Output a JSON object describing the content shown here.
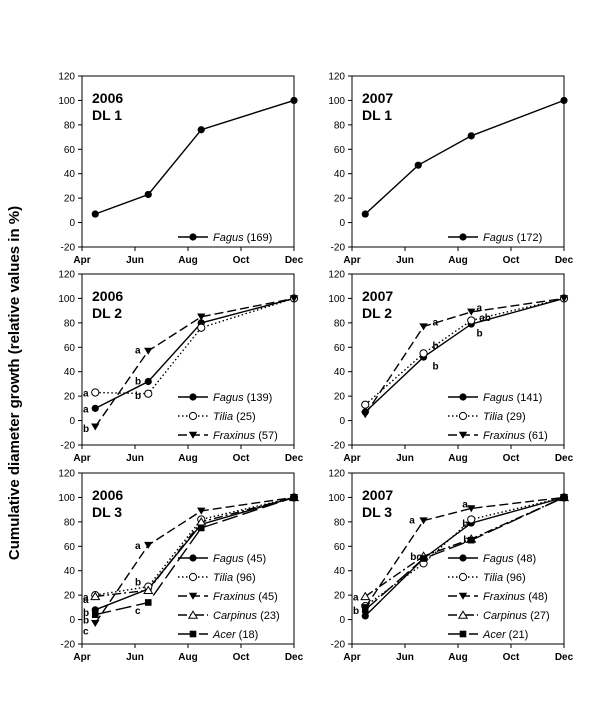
{
  "figure": {
    "ylabel": "Cumulative diameter growth (relative values in %)",
    "xticks": [
      "Apr",
      "Jun",
      "Aug",
      "Oct",
      "Dec"
    ],
    "yticks": [
      "-20",
      "0",
      "20",
      "40",
      "60",
      "80",
      "100",
      "120"
    ]
  },
  "chart_data": [
    {
      "type": "line",
      "year": "2006",
      "dl": "DL 1",
      "x": [
        "Apr",
        "Jun",
        "Aug",
        "Oct",
        "Dec"
      ],
      "ylim": [
        -20,
        120
      ],
      "series": [
        {
          "name": "Fagus",
          "n": "(169)",
          "style": "solid",
          "marker": "circle-filled",
          "points": [
            [
              0.25,
              7
            ],
            [
              1.25,
              23
            ],
            [
              2.25,
              76
            ],
            [
              4,
              100
            ]
          ]
        }
      ],
      "letters": []
    },
    {
      "type": "line",
      "year": "2007",
      "dl": "DL 1",
      "x": [
        "Apr",
        "Jun",
        "Aug",
        "Oct",
        "Dec"
      ],
      "ylim": [
        -20,
        120
      ],
      "series": [
        {
          "name": "Fagus",
          "n": "(172)",
          "style": "solid",
          "marker": "circle-filled",
          "points": [
            [
              0.25,
              7
            ],
            [
              1.25,
              47
            ],
            [
              2.25,
              71
            ],
            [
              4,
              100
            ]
          ]
        }
      ],
      "letters": []
    },
    {
      "type": "line",
      "year": "2006",
      "dl": "DL 2",
      "x": [
        "Apr",
        "Jun",
        "Aug",
        "Oct",
        "Dec"
      ],
      "ylim": [
        -20,
        120
      ],
      "series": [
        {
          "name": "Fagus",
          "n": "(139)",
          "style": "solid",
          "marker": "circle-filled",
          "points": [
            [
              0.25,
              10
            ],
            [
              1.25,
              32
            ],
            [
              2.25,
              80
            ],
            [
              4,
              100
            ]
          ]
        },
        {
          "name": "Tilia",
          "n": "(25)",
          "style": "dotted",
          "marker": "circle-open",
          "points": [
            [
              0.25,
              23
            ],
            [
              1.25,
              22
            ],
            [
              2.25,
              76
            ],
            [
              4,
              100
            ]
          ]
        },
        {
          "name": "Fraxinus",
          "n": "(57)",
          "style": "dashed",
          "marker": "triangle-down",
          "points": [
            [
              0.25,
              -5
            ],
            [
              1.25,
              57
            ],
            [
              2.25,
              85
            ],
            [
              4,
              100
            ]
          ]
        }
      ],
      "letters": [
        {
          "text": "a",
          "x": 0.02,
          "y": 23
        },
        {
          "text": "a",
          "x": 0.02,
          "y": 10
        },
        {
          "text": "b",
          "x": 0.02,
          "y": -6
        },
        {
          "text": "a",
          "x": 1.0,
          "y": 58
        },
        {
          "text": "b",
          "x": 1.0,
          "y": 33
        },
        {
          "text": "b",
          "x": 1.0,
          "y": 21
        }
      ]
    },
    {
      "type": "line",
      "year": "2007",
      "dl": "DL 2",
      "x": [
        "Apr",
        "Jun",
        "Aug",
        "Oct",
        "Dec"
      ],
      "ylim": [
        -20,
        120
      ],
      "series": [
        {
          "name": "Fagus",
          "n": "(141)",
          "style": "solid",
          "marker": "circle-filled",
          "points": [
            [
              0.25,
              7
            ],
            [
              1.35,
              52
            ],
            [
              2.25,
              79
            ],
            [
              4,
              100
            ]
          ]
        },
        {
          "name": "Tilia",
          "n": "(29)",
          "style": "dotted",
          "marker": "circle-open",
          "points": [
            [
              0.25,
              13
            ],
            [
              1.35,
              55
            ],
            [
              2.25,
              82
            ],
            [
              4,
              100
            ]
          ]
        },
        {
          "name": "Fraxinus",
          "n": "(61)",
          "style": "dashed",
          "marker": "triangle-down",
          "points": [
            [
              0.25,
              5
            ],
            [
              1.35,
              77
            ],
            [
              2.25,
              89
            ],
            [
              4,
              100
            ]
          ]
        }
      ],
      "letters": [
        {
          "text": "a",
          "x": 1.52,
          "y": 81
        },
        {
          "text": "b",
          "x": 1.52,
          "y": 62
        },
        {
          "text": "b",
          "x": 1.52,
          "y": 45
        },
        {
          "text": "a",
          "x": 2.35,
          "y": 93
        },
        {
          "text": "ab",
          "x": 2.4,
          "y": 85
        },
        {
          "text": "b",
          "x": 2.35,
          "y": 72
        }
      ]
    },
    {
      "type": "line",
      "year": "2006",
      "dl": "DL 3",
      "x": [
        "Apr",
        "Jun",
        "Aug",
        "Oct",
        "Dec"
      ],
      "ylim": [
        -20,
        120
      ],
      "series": [
        {
          "name": "Fagus",
          "n": "(45)",
          "style": "solid",
          "marker": "circle-filled",
          "points": [
            [
              0.25,
              8
            ],
            [
              1.25,
              25
            ],
            [
              2.25,
              78
            ],
            [
              4,
              100
            ]
          ]
        },
        {
          "name": "Tilia",
          "n": "(96)",
          "style": "dotted",
          "marker": "circle-open",
          "points": [
            [
              0.25,
              20
            ],
            [
              1.25,
              27
            ],
            [
              2.25,
              82
            ],
            [
              4,
              100
            ]
          ]
        },
        {
          "name": "Fraxinus",
          "n": "(45)",
          "style": "dashed",
          "marker": "triangle-down",
          "points": [
            [
              0.25,
              -3
            ],
            [
              1.25,
              61
            ],
            [
              2.25,
              89
            ],
            [
              4,
              100
            ]
          ]
        },
        {
          "name": "Carpinus",
          "n": "(23)",
          "style": "dashdot",
          "marker": "triangle-up-open",
          "points": [
            [
              0.25,
              19
            ],
            [
              1.25,
              24
            ],
            [
              2.25,
              80
            ],
            [
              4,
              100
            ]
          ]
        },
        {
          "name": "Acer",
          "n": "(18)",
          "style": "longdash",
          "marker": "square-filled",
          "points": [
            [
              0.25,
              4
            ],
            [
              1.25,
              14
            ],
            [
              2.25,
              75
            ],
            [
              4,
              100
            ]
          ]
        }
      ],
      "letters": [
        {
          "text": "a",
          "x": 0.02,
          "y": 19
        },
        {
          "text": "a",
          "x": 0.02,
          "y": 17
        },
        {
          "text": "b",
          "x": 0.02,
          "y": 6
        },
        {
          "text": "b",
          "x": 0.02,
          "y": 0
        },
        {
          "text": "c",
          "x": 0.02,
          "y": -9
        },
        {
          "text": "a",
          "x": 1.0,
          "y": 61
        },
        {
          "text": "b",
          "x": 1.0,
          "y": 31
        },
        {
          "text": "c",
          "x": 1.0,
          "y": 8
        }
      ]
    },
    {
      "type": "line",
      "year": "2007",
      "dl": "DL 3",
      "x": [
        "Apr",
        "Jun",
        "Aug",
        "Oct",
        "Dec"
      ],
      "ylim": [
        -20,
        120
      ],
      "series": [
        {
          "name": "Fagus",
          "n": "(48)",
          "style": "solid",
          "marker": "circle-filled",
          "points": [
            [
              0.25,
              3
            ],
            [
              1.35,
              50
            ],
            [
              2.25,
              79
            ],
            [
              4,
              100
            ]
          ]
        },
        {
          "name": "Tilia",
          "n": "(96)",
          "style": "dotted",
          "marker": "circle-open",
          "points": [
            [
              0.25,
              11
            ],
            [
              1.35,
              46
            ],
            [
              2.25,
              82
            ],
            [
              4,
              100
            ]
          ]
        },
        {
          "name": "Fraxinus",
          "n": "(48)",
          "style": "dashed",
          "marker": "triangle-down",
          "points": [
            [
              0.25,
              10
            ],
            [
              1.35,
              81
            ],
            [
              2.25,
              91
            ],
            [
              4,
              100
            ]
          ]
        },
        {
          "name": "Carpinus",
          "n": "(27)",
          "style": "dashdot",
          "marker": "triangle-up-open",
          "points": [
            [
              0.25,
              19
            ],
            [
              1.35,
              52
            ],
            [
              2.25,
              66
            ],
            [
              4,
              100
            ]
          ]
        },
        {
          "name": "Acer",
          "n": "(21)",
          "style": "longdash",
          "marker": "square-filled",
          "points": [
            [
              0.25,
              8
            ],
            [
              1.35,
              50
            ],
            [
              2.25,
              65
            ],
            [
              4,
              100
            ]
          ]
        }
      ],
      "letters": [
        {
          "text": "a",
          "x": 0.02,
          "y": 19
        },
        {
          "text": "b",
          "x": 0.02,
          "y": 8
        },
        {
          "text": "a",
          "x": 1.08,
          "y": 82
        },
        {
          "text": "bc",
          "x": 1.1,
          "y": 52
        },
        {
          "text": "a",
          "x": 2.08,
          "y": 95
        },
        {
          "text": "b",
          "x": 2.08,
          "y": 79
        },
        {
          "text": "bc",
          "x": 2.1,
          "y": 66
        }
      ]
    }
  ]
}
